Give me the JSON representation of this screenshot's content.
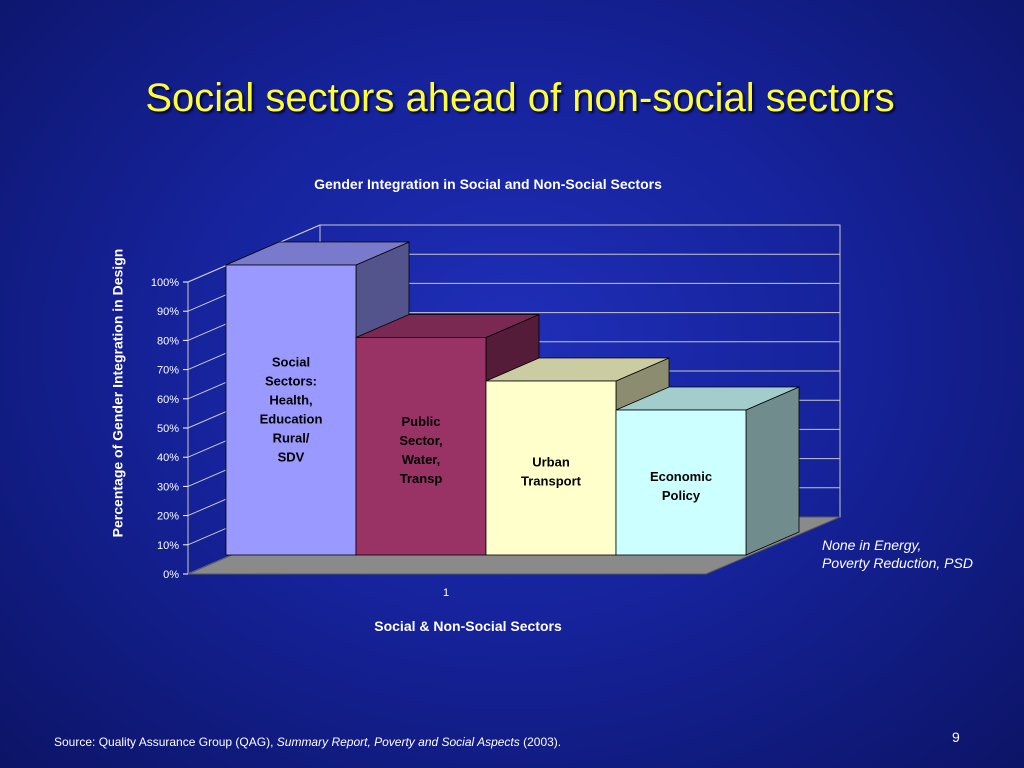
{
  "slide": {
    "title": "Social sectors ahead of non-social sectors",
    "page_number": "9",
    "note_line1": "None in Energy,",
    "note_line2": "Poverty Reduction, PSD",
    "source_prefix": "Source: Quality Assurance Group (QAG), ",
    "source_italic": "Summary Report, Poverty and Social Aspects",
    "source_suffix": " (2003)."
  },
  "colors": {
    "background": "#16239c",
    "title": "#ffff33",
    "bar_social": "#9999ff",
    "bar_public": "#993366",
    "bar_urban": "#ffffcc",
    "bar_economic": "#ccffff",
    "floor": "#8a8a8a"
  },
  "chart_data": {
    "type": "bar",
    "style": "3d-stacked-depth",
    "title": "Gender Integration in Social and Non-Social Sectors",
    "ylabel": "Percentage of Gender Integration in Design",
    "xlabel": "Social & Non-Social Sectors",
    "categories": [
      "1"
    ],
    "ylim": [
      0,
      100
    ],
    "yticks": [
      "0%",
      "10%",
      "20%",
      "30%",
      "40%",
      "50%",
      "60%",
      "70%",
      "80%",
      "90%",
      "100%"
    ],
    "grid": true,
    "series": [
      {
        "name": "Social Sectors: Health, Education Rural/ SDV",
        "label_lines": [
          "Social",
          "Sectors:",
          "Health,",
          "Education",
          "Rural/",
          "SDV"
        ],
        "values": [
          100
        ]
      },
      {
        "name": "Public Sector, Water, Transp",
        "label_lines": [
          "Public",
          "Sector,",
          "Water,",
          "Transp"
        ],
        "values": [
          75
        ]
      },
      {
        "name": "Urban Transport",
        "label_lines": [
          "Urban",
          "Transport"
        ],
        "values": [
          60
        ]
      },
      {
        "name": "Economic Policy",
        "label_lines": [
          "Economic",
          "Policy"
        ],
        "values": [
          50
        ]
      }
    ]
  }
}
